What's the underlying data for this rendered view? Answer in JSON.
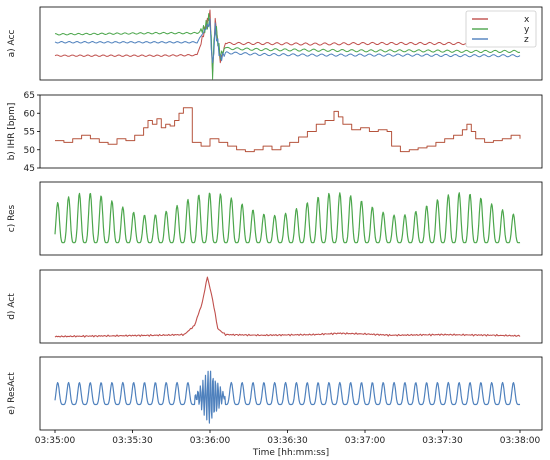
{
  "chart_data": [
    {
      "type": "line",
      "panel": "a",
      "ylabel": "a) Acc",
      "legend": "top-right",
      "series": [
        {
          "name": "x",
          "color": "#c0504d",
          "points": [
            [
              0,
              0.3
            ],
            [
              20,
              0.3
            ],
            [
              40,
              0.3
            ],
            [
              55,
              0.31
            ],
            [
              60,
              1.0
            ],
            [
              61,
              0.0
            ],
            [
              62,
              0.9
            ],
            [
              64,
              0.2
            ],
            [
              66,
              0.5
            ],
            [
              80,
              0.5
            ],
            [
              100,
              0.49
            ],
            [
              120,
              0.5
            ],
            [
              140,
              0.5
            ],
            [
              160,
              0.5
            ],
            [
              180,
              0.49
            ]
          ]
        },
        {
          "name": "y",
          "color": "#4ca64c",
          "points": [
            [
              0,
              0.65
            ],
            [
              20,
              0.66
            ],
            [
              40,
              0.67
            ],
            [
              55,
              0.67
            ],
            [
              58,
              0.75
            ],
            [
              60,
              0.92
            ],
            [
              61,
              0.05
            ],
            [
              62,
              0.8
            ],
            [
              64,
              0.3
            ],
            [
              66,
              0.42
            ],
            [
              80,
              0.4
            ],
            [
              100,
              0.39
            ],
            [
              120,
              0.38
            ],
            [
              140,
              0.38
            ],
            [
              160,
              0.37
            ],
            [
              180,
              0.37
            ]
          ]
        },
        {
          "name": "z",
          "color": "#4f81bd",
          "points": [
            [
              0,
              0.52
            ],
            [
              20,
              0.52
            ],
            [
              40,
              0.52
            ],
            [
              55,
              0.52
            ],
            [
              60,
              0.85
            ],
            [
              61,
              0.1
            ],
            [
              62,
              0.75
            ],
            [
              64,
              0.25
            ],
            [
              66,
              0.35
            ],
            [
              80,
              0.32
            ],
            [
              100,
              0.31
            ],
            [
              120,
              0.31
            ],
            [
              140,
              0.31
            ],
            [
              160,
              0.3
            ],
            [
              180,
              0.3
            ]
          ]
        }
      ]
    },
    {
      "type": "line",
      "panel": "b",
      "ylabel": "b) IHR [bpm]",
      "ylim": [
        45,
        65
      ],
      "yticks": [
        "45",
        "50",
        "55",
        "60",
        "65"
      ],
      "series": [
        {
          "name": "IHR",
          "color": "#b5533c",
          "step": true,
          "points": [
            [
              0,
              52.5
            ],
            [
              4,
              52
            ],
            [
              8,
              53
            ],
            [
              12,
              54
            ],
            [
              16,
              53
            ],
            [
              20,
              52
            ],
            [
              24,
              51.5
            ],
            [
              28,
              53
            ],
            [
              32,
              52.5
            ],
            [
              36,
              54
            ],
            [
              40,
              56
            ],
            [
              42,
              58
            ],
            [
              44,
              57
            ],
            [
              46,
              58.5
            ],
            [
              48,
              56
            ],
            [
              50,
              57
            ],
            [
              52,
              56.5
            ],
            [
              54,
              58
            ],
            [
              56,
              60
            ],
            [
              58,
              61.5
            ],
            [
              60,
              61.5
            ],
            [
              62,
              52
            ],
            [
              66,
              51
            ],
            [
              70,
              53
            ],
            [
              74,
              52
            ],
            [
              78,
              51
            ],
            [
              82,
              50
            ],
            [
              86,
              49.5
            ],
            [
              90,
              50
            ],
            [
              94,
              51
            ],
            [
              98,
              50
            ],
            [
              102,
              51
            ],
            [
              106,
              52
            ],
            [
              110,
              53.5
            ],
            [
              114,
              55
            ],
            [
              118,
              57
            ],
            [
              122,
              58
            ],
            [
              126,
              60.5
            ],
            [
              128,
              59
            ],
            [
              130,
              57
            ],
            [
              134,
              55.5
            ],
            [
              138,
              56
            ],
            [
              142,
              55
            ],
            [
              146,
              55.5
            ],
            [
              150,
              55
            ],
            [
              152,
              51
            ],
            [
              156,
              49.5
            ],
            [
              160,
              50
            ],
            [
              164,
              50.5
            ],
            [
              168,
              51
            ],
            [
              172,
              52
            ],
            [
              176,
              53
            ],
            [
              180,
              54
            ],
            [
              184,
              55.5
            ],
            [
              186,
              57
            ],
            [
              188,
              55
            ],
            [
              190,
              53
            ],
            [
              194,
              52
            ],
            [
              198,
              52.5
            ],
            [
              202,
              53
            ],
            [
              206,
              54
            ],
            [
              210,
              53
            ]
          ]
        }
      ]
    },
    {
      "type": "line",
      "panel": "c",
      "ylabel": "c) Res",
      "series": [
        {
          "name": "Res",
          "color": "#4ca64c",
          "signal": "respiration"
        }
      ]
    },
    {
      "type": "line",
      "panel": "d",
      "ylabel": "d) Act",
      "series": [
        {
          "name": "Act",
          "color": "#c0504d",
          "points": [
            [
              0,
              0.03
            ],
            [
              20,
              0.04
            ],
            [
              40,
              0.05
            ],
            [
              50,
              0.06
            ],
            [
              54,
              0.2
            ],
            [
              57,
              0.55
            ],
            [
              59,
              0.95
            ],
            [
              61,
              0.6
            ],
            [
              63,
              0.15
            ],
            [
              66,
              0.06
            ],
            [
              80,
              0.05
            ],
            [
              100,
              0.06
            ],
            [
              110,
              0.08
            ],
            [
              120,
              0.07
            ],
            [
              130,
              0.05
            ],
            [
              150,
              0.06
            ],
            [
              170,
              0.05
            ],
            [
              180,
              0.04
            ]
          ]
        }
      ]
    },
    {
      "type": "line",
      "panel": "e",
      "ylabel": "e) ResAct",
      "series": [
        {
          "name": "ResAct",
          "color": "#4f81bd",
          "signal": "resact"
        }
      ]
    }
  ],
  "x_axis": {
    "label": "Time [hh:mm:ss]",
    "xlim": [
      "03:35:00",
      "03:38:00"
    ],
    "ticks": [
      "03:35:00",
      "03:35:30",
      "03:36:00",
      "03:36:30",
      "03:37:00",
      "03:37:30",
      "03:38:00"
    ]
  },
  "panel_labels": [
    "a) Acc",
    "b) IHR [bpm]",
    "c) Res",
    "d) Act",
    "e) ResAct"
  ]
}
